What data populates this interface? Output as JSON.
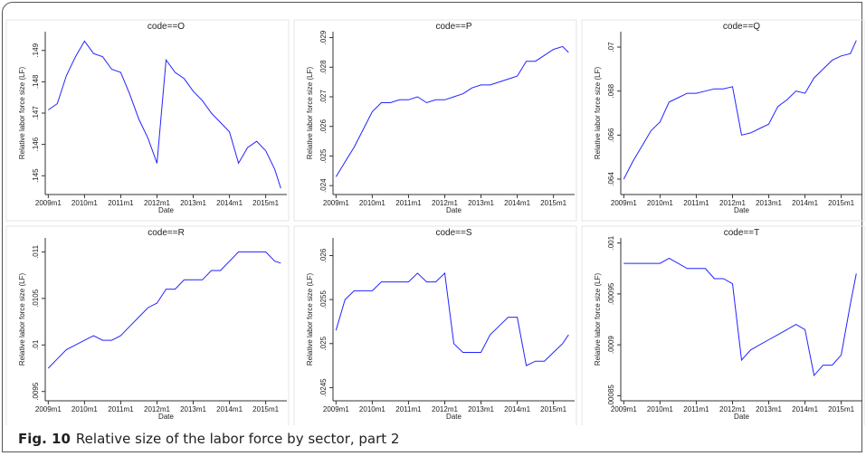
{
  "chart_data": [
    {
      "type": "line",
      "title": "code==O",
      "xlabel": "Date",
      "ylabel": "Relative labor force size (LF)",
      "color": "#2323ff",
      "x": [
        "2009m1",
        "2009m4",
        "2009m7",
        "2009m10",
        "2010m1",
        "2010m4",
        "2010m7",
        "2010m10",
        "2011m1",
        "2011m4",
        "2011m7",
        "2011m10",
        "2012m1",
        "2012m4",
        "2012m7",
        "2012m10",
        "2013m1",
        "2013m4",
        "2013m7",
        "2013m10",
        "2014m1",
        "2014m4",
        "2014m7",
        "2014m10",
        "2015m1",
        "2015m4",
        "2015m6"
      ],
      "values": [
        0.1471,
        0.1473,
        0.1482,
        0.1488,
        0.1493,
        0.1489,
        0.1488,
        0.1484,
        0.1483,
        0.1476,
        0.1468,
        0.1462,
        0.1454,
        0.1487,
        0.1483,
        0.1481,
        0.1477,
        0.1474,
        0.147,
        0.1467,
        0.1464,
        0.1454,
        0.1459,
        0.1461,
        0.1458,
        0.1452,
        0.1446
      ],
      "xlim": [
        "2008m12",
        "2015m8"
      ],
      "ylim": [
        0.1444,
        0.1496
      ],
      "xticks": [
        "2009m1",
        "2010m1",
        "2011m1",
        "2012m1",
        "2013m1",
        "2014m1",
        "2015m1"
      ],
      "yticks": [
        {
          "value": 0.145,
          "label": ".145"
        },
        {
          "value": 0.146,
          "label": ".146"
        },
        {
          "value": 0.147,
          "label": ".147"
        },
        {
          "value": 0.148,
          "label": ".148"
        },
        {
          "value": 0.149,
          "label": ".149"
        }
      ]
    },
    {
      "type": "line",
      "title": "code==P",
      "xlabel": "Date",
      "ylabel": "Relative labor force size (LF)",
      "color": "#2323ff",
      "x": [
        "2009m1",
        "2009m4",
        "2009m7",
        "2009m10",
        "2010m1",
        "2010m4",
        "2010m7",
        "2010m10",
        "2011m1",
        "2011m4",
        "2011m7",
        "2011m10",
        "2012m1",
        "2012m4",
        "2012m7",
        "2012m10",
        "2013m1",
        "2013m4",
        "2013m7",
        "2013m10",
        "2014m1",
        "2014m4",
        "2014m7",
        "2014m10",
        "2015m1",
        "2015m4",
        "2015m6"
      ],
      "values": [
        0.0243,
        0.0248,
        0.0253,
        0.0259,
        0.0265,
        0.0268,
        0.0268,
        0.0269,
        0.0269,
        0.027,
        0.0268,
        0.0269,
        0.0269,
        0.027,
        0.0271,
        0.0273,
        0.0274,
        0.0274,
        0.0275,
        0.0276,
        0.0277,
        0.0282,
        0.0282,
        0.0284,
        0.0286,
        0.0287,
        0.0285
      ],
      "xlim": [
        "2008m12",
        "2015m8"
      ],
      "ylim": [
        0.0237,
        0.0292
      ],
      "xticks": [
        "2009m1",
        "2010m1",
        "2011m1",
        "2012m1",
        "2013m1",
        "2014m1",
        "2015m1"
      ],
      "yticks": [
        {
          "value": 0.024,
          "label": ".024"
        },
        {
          "value": 0.025,
          "label": ".025"
        },
        {
          "value": 0.026,
          "label": ".026"
        },
        {
          "value": 0.027,
          "label": ".027"
        },
        {
          "value": 0.028,
          "label": ".028"
        },
        {
          "value": 0.029,
          "label": ".029"
        }
      ]
    },
    {
      "type": "line",
      "title": "code==Q",
      "xlabel": "Date",
      "ylabel": "Relative labor force size (LF)",
      "color": "#2323ff",
      "x": [
        "2009m1",
        "2009m4",
        "2009m7",
        "2009m10",
        "2010m1",
        "2010m4",
        "2010m7",
        "2010m10",
        "2011m1",
        "2011m4",
        "2011m7",
        "2011m10",
        "2012m1",
        "2012m4",
        "2012m7",
        "2012m10",
        "2013m1",
        "2013m4",
        "2013m7",
        "2013m10",
        "2014m1",
        "2014m4",
        "2014m7",
        "2014m10",
        "2015m1",
        "2015m4",
        "2015m6"
      ],
      "values": [
        0.064,
        0.0648,
        0.0655,
        0.0662,
        0.0666,
        0.0675,
        0.0677,
        0.0679,
        0.0679,
        0.068,
        0.0681,
        0.0681,
        0.0682,
        0.066,
        0.0661,
        0.0663,
        0.0665,
        0.0673,
        0.0676,
        0.068,
        0.0679,
        0.0686,
        0.069,
        0.0694,
        0.0696,
        0.0697,
        0.0703
      ],
      "xlim": [
        "2008m12",
        "2015m8"
      ],
      "ylim": [
        0.0633,
        0.0707
      ],
      "xticks": [
        "2009m1",
        "2010m1",
        "2011m1",
        "2012m1",
        "2013m1",
        "2014m1",
        "2015m1"
      ],
      "yticks": [
        {
          "value": 0.064,
          "label": ".064"
        },
        {
          "value": 0.066,
          "label": ".066"
        },
        {
          "value": 0.068,
          "label": ".068"
        },
        {
          "value": 0.07,
          "label": ".07"
        }
      ]
    },
    {
      "type": "line",
      "title": "code==R",
      "xlabel": "Date",
      "ylabel": "Relative labor force size (LF)",
      "color": "#2323ff",
      "x": [
        "2009m1",
        "2009m4",
        "2009m7",
        "2009m10",
        "2010m1",
        "2010m4",
        "2010m7",
        "2010m10",
        "2011m1",
        "2011m4",
        "2011m7",
        "2011m10",
        "2012m1",
        "2012m4",
        "2012m7",
        "2012m10",
        "2013m1",
        "2013m4",
        "2013m7",
        "2013m10",
        "2014m1",
        "2014m4",
        "2014m7",
        "2014m10",
        "2015m1",
        "2015m4",
        "2015m6"
      ],
      "values": [
        0.00975,
        0.00985,
        0.00995,
        0.01,
        0.01005,
        0.0101,
        0.01005,
        0.01005,
        0.0101,
        0.0102,
        0.0103,
        0.0104,
        0.01045,
        0.0106,
        0.0106,
        0.0107,
        0.0107,
        0.0107,
        0.0108,
        0.0108,
        0.0109,
        0.011,
        0.011,
        0.011,
        0.011,
        0.0109,
        0.01088
      ],
      "xlim": [
        "2008m12",
        "2015m8"
      ],
      "ylim": [
        0.0094,
        0.01115
      ],
      "xticks": [
        "2009m1",
        "2010m1",
        "2011m1",
        "2012m1",
        "2013m1",
        "2014m1",
        "2015m1"
      ],
      "yticks": [
        {
          "value": 0.0095,
          "label": ".0095"
        },
        {
          "value": 0.01,
          "label": ".01"
        },
        {
          "value": 0.0105,
          "label": ".0105"
        },
        {
          "value": 0.011,
          "label": ".011"
        }
      ]
    },
    {
      "type": "line",
      "title": "code==S",
      "xlabel": "Date",
      "ylabel": "Relative labor force size (LF)",
      "color": "#2323ff",
      "x": [
        "2009m1",
        "2009m4",
        "2009m7",
        "2009m10",
        "2010m1",
        "2010m4",
        "2010m7",
        "2010m10",
        "2011m1",
        "2011m4",
        "2011m7",
        "2011m10",
        "2012m1",
        "2012m4",
        "2012m7",
        "2012m10",
        "2013m1",
        "2013m4",
        "2013m7",
        "2013m10",
        "2014m1",
        "2014m4",
        "2014m7",
        "2014m10",
        "2015m1",
        "2015m4",
        "2015m6"
      ],
      "values": [
        0.02515,
        0.0255,
        0.0256,
        0.0256,
        0.0256,
        0.0257,
        0.0257,
        0.0257,
        0.0257,
        0.0258,
        0.0257,
        0.0257,
        0.0258,
        0.025,
        0.0249,
        0.0249,
        0.0249,
        0.0251,
        0.0252,
        0.0253,
        0.0253,
        0.02475,
        0.0248,
        0.0248,
        0.0249,
        0.025,
        0.0251
      ],
      "xlim": [
        "2008m12",
        "2015m8"
      ],
      "ylim": [
        0.02435,
        0.0262
      ],
      "xticks": [
        "2009m1",
        "2010m1",
        "2011m1",
        "2012m1",
        "2013m1",
        "2014m1",
        "2015m1"
      ],
      "yticks": [
        {
          "value": 0.0245,
          "label": ".0245"
        },
        {
          "value": 0.025,
          "label": ".025"
        },
        {
          "value": 0.0255,
          "label": ".0255"
        },
        {
          "value": 0.026,
          "label": ".026"
        }
      ]
    },
    {
      "type": "line",
      "title": "code==T",
      "xlabel": "Date",
      "ylabel": "Relative labor force size (LF)",
      "color": "#2323ff",
      "x": [
        "2009m1",
        "2009m4",
        "2009m7",
        "2009m10",
        "2010m1",
        "2010m4",
        "2010m7",
        "2010m10",
        "2011m1",
        "2011m4",
        "2011m7",
        "2011m10",
        "2012m1",
        "2012m4",
        "2012m7",
        "2012m10",
        "2013m1",
        "2013m4",
        "2013m7",
        "2013m10",
        "2014m1",
        "2014m4",
        "2014m7",
        "2014m10",
        "2015m1",
        "2015m4",
        "2015m6"
      ],
      "values": [
        0.00098,
        0.00098,
        0.00098,
        0.00098,
        0.00098,
        0.000985,
        0.00098,
        0.000975,
        0.000975,
        0.000975,
        0.000965,
        0.000965,
        0.00096,
        0.000885,
        0.000895,
        0.0009,
        0.000905,
        0.00091,
        0.000915,
        0.00092,
        0.000915,
        0.00087,
        0.00088,
        0.00088,
        0.00089,
        0.00094,
        0.00097
      ],
      "xlim": [
        "2008m12",
        "2015m8"
      ],
      "ylim": [
        0.000845,
        0.001005
      ],
      "xticks": [
        "2009m1",
        "2010m1",
        "2011m1",
        "2012m1",
        "2013m1",
        "2014m1",
        "2015m1"
      ],
      "yticks": [
        {
          "value": 0.00085,
          "label": ".00085"
        },
        {
          "value": 0.0009,
          "label": ".0009"
        },
        {
          "value": 0.00095,
          "label": ".00095"
        },
        {
          "value": 0.001,
          "label": ".001"
        }
      ]
    }
  ],
  "caption": {
    "label": "Fig. 10",
    "text": "Relative size of the labor force by sector, part 2"
  }
}
